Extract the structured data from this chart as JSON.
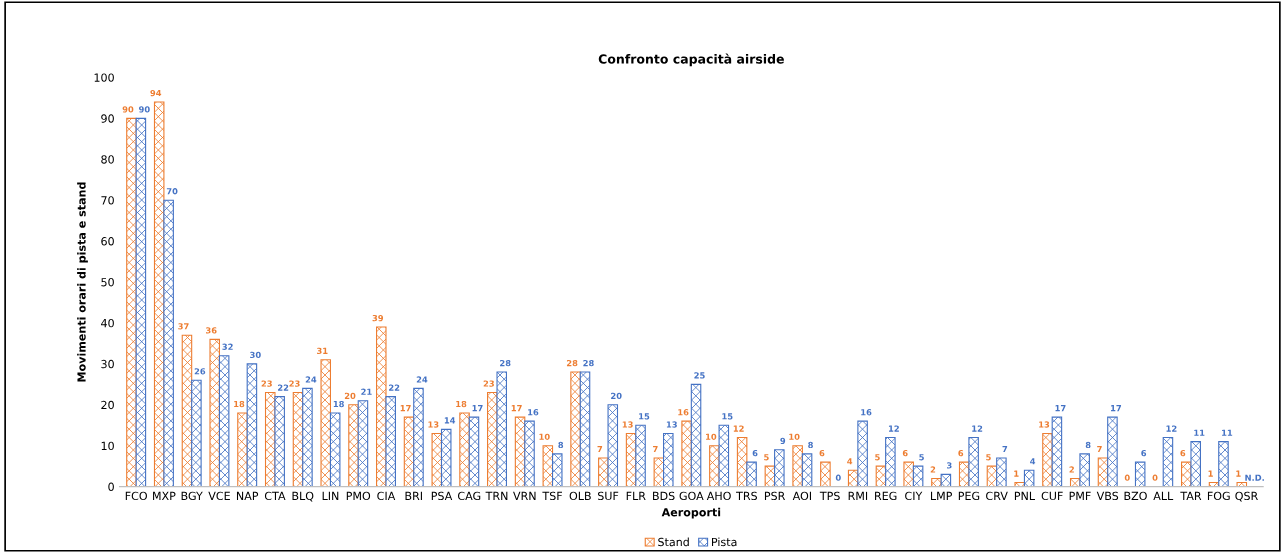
{
  "chart_data": {
    "type": "bar",
    "title": "Confronto capacità airside",
    "xlabel": "Aeroporti",
    "ylabel": "Movimenti orari di pista e stand",
    "categories": [
      "FCO",
      "MXP",
      "BGY",
      "VCE",
      "NAP",
      "CTA",
      "BLQ",
      "LIN",
      "PMO",
      "CIA",
      "BRI",
      "PSA",
      "CAG",
      "TRN",
      "VRN",
      "TSF",
      "OLB",
      "SUF",
      "FLR",
      "BDS",
      "GOA",
      "AHO",
      "TRS",
      "PSR",
      "AOI",
      "TPS",
      "RMI",
      "REG",
      "CIY",
      "LMP",
      "PEG",
      "CRV",
      "PNL",
      "CUF",
      "PMF",
      "VBS",
      "BZO",
      "ALL",
      "TAR",
      "FOG",
      "QSR"
    ],
    "series": [
      {
        "name": "Stand",
        "color": "#ed7d31",
        "values": [
          90,
          94,
          37,
          36,
          18,
          23,
          23,
          31,
          20,
          39,
          17,
          13,
          18,
          23,
          17,
          10,
          28,
          7,
          13,
          7,
          16,
          10,
          12,
          5,
          10,
          6,
          4,
          5,
          6,
          2,
          6,
          5,
          1,
          13,
          2,
          7,
          0,
          0,
          6,
          1,
          1
        ],
        "value_labels": [
          "90",
          "94",
          "37",
          "36",
          "18",
          "23",
          "23",
          "31",
          "20",
          "39",
          "17",
          "13",
          "18",
          "23",
          "17",
          "10",
          "28",
          "7",
          "13",
          "7",
          "16",
          "10",
          "12",
          "5",
          "10",
          "6",
          "4",
          "5",
          "6",
          "2",
          "6",
          "5",
          "1",
          "13",
          "2",
          "7",
          "0",
          "0",
          "6",
          "1",
          "1"
        ]
      },
      {
        "name": "Pista",
        "color": "#4472c4",
        "values": [
          90,
          70,
          26,
          32,
          30,
          22,
          24,
          18,
          21,
          22,
          24,
          14,
          17,
          28,
          16,
          8,
          28,
          20,
          15,
          13,
          25,
          15,
          6,
          9,
          8,
          0,
          16,
          12,
          5,
          3,
          12,
          7,
          4,
          17,
          8,
          17,
          6,
          12,
          11,
          11,
          null
        ],
        "value_labels": [
          "90",
          "70",
          "26",
          "32",
          "30",
          "22",
          "24",
          "18",
          "21",
          "22",
          "24",
          "14",
          "17",
          "28",
          "16",
          "8",
          "28",
          "20",
          "15",
          "13",
          "25",
          "15",
          "6",
          "9",
          "8",
          "0",
          "16",
          "12",
          "5",
          "3",
          "12",
          "7",
          "4",
          "17",
          "8",
          "17",
          "6",
          "12",
          "11",
          "11",
          "N.D."
        ]
      }
    ],
    "ylim": [
      0,
      100
    ],
    "yticks": [
      0,
      10,
      20,
      30,
      40,
      50,
      60,
      70,
      80,
      90,
      100
    ],
    "grid": false,
    "legend": "bottom"
  }
}
